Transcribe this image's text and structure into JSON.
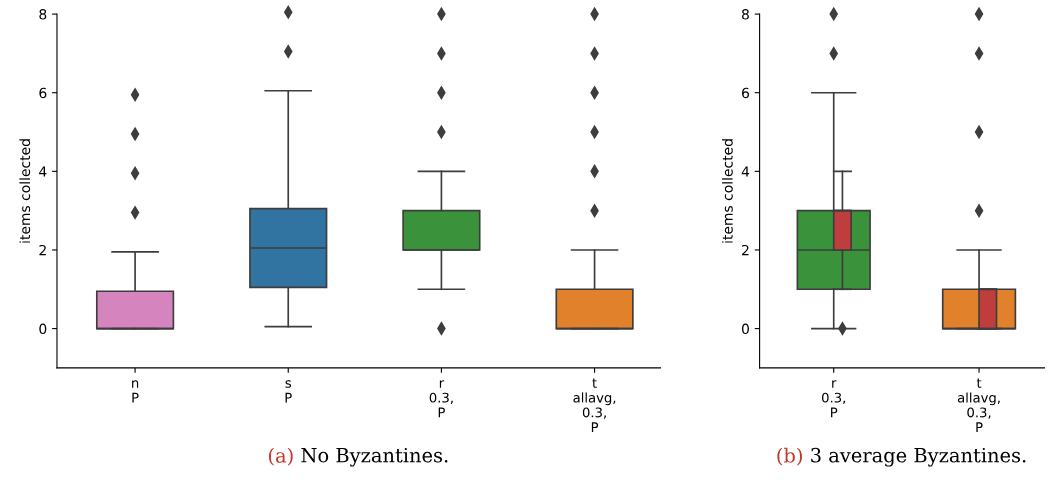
{
  "chart_data": [
    {
      "type": "box",
      "ylabel": "items collected",
      "categories": [
        "n\nP",
        "s\nP",
        "r\n0.3,\nP",
        "t\nallavg,\n0.3,\nP"
      ],
      "ylim": [
        -1,
        8
      ],
      "yticks": [
        0,
        2,
        4,
        6,
        8
      ],
      "marker": "diamond",
      "grid": false,
      "annotations": [
        "(a) No Byzantines."
      ],
      "series": [
        {
          "colors": [
            "#d684bd",
            "#3274a1",
            "#3a923a",
            "#e1812c"
          ],
          "boxes": [
            {
              "low": 0,
              "q1": 0,
              "median": 0,
              "q3": 0.95,
              "high": 1.95,
              "outliers": [
                2.95,
                3.95,
                4.95,
                5.95
              ]
            },
            {
              "low": 0.05,
              "q1": 1.05,
              "median": 2.05,
              "q3": 3.05,
              "high": 6.05,
              "outliers": [
                7.05,
                8.05
              ]
            },
            {
              "low": 1,
              "q1": 2,
              "median": 2,
              "q3": 3,
              "high": 4,
              "outliers": [
                0,
                5,
                6,
                7,
                8
              ]
            },
            {
              "low": 0,
              "q1": 0,
              "median": 0,
              "q3": 1,
              "high": 2,
              "outliers": [
                3,
                4,
                5,
                6,
                7,
                8
              ]
            }
          ]
        }
      ]
    },
    {
      "type": "box",
      "ylabel": "items collected",
      "categories": [
        "r\n0.3,\nP",
        "t\nallavg,\n0.3,\nP"
      ],
      "ylim": [
        -1,
        8
      ],
      "yticks": [
        0,
        2,
        4,
        6,
        8
      ],
      "marker": "diamond",
      "grid": false,
      "annotations": [
        "(b) 3 average Byzantines."
      ],
      "series": [
        {
          "colors": [
            "#3a923a",
            "#e1812c"
          ],
          "boxes": [
            {
              "low": 0,
              "q1": 1,
              "median": 2,
              "q3": 3,
              "high": 6,
              "outliers": [
                7,
                8
              ]
            },
            {
              "low": 0,
              "q1": 0,
              "median": 0,
              "q3": 1,
              "high": 2,
              "outliers": [
                3,
                5,
                7,
                8
              ]
            }
          ]
        },
        {
          "color": "#c03d3e",
          "boxes": [
            {
              "low": 1,
              "q1": 2,
              "median": 3,
              "q3": 3,
              "high": 4,
              "outliers": [
                0
              ]
            },
            {
              "low": 0,
              "q1": 0,
              "median": 1,
              "q3": 1,
              "high": 1
            }
          ]
        }
      ]
    }
  ]
}
